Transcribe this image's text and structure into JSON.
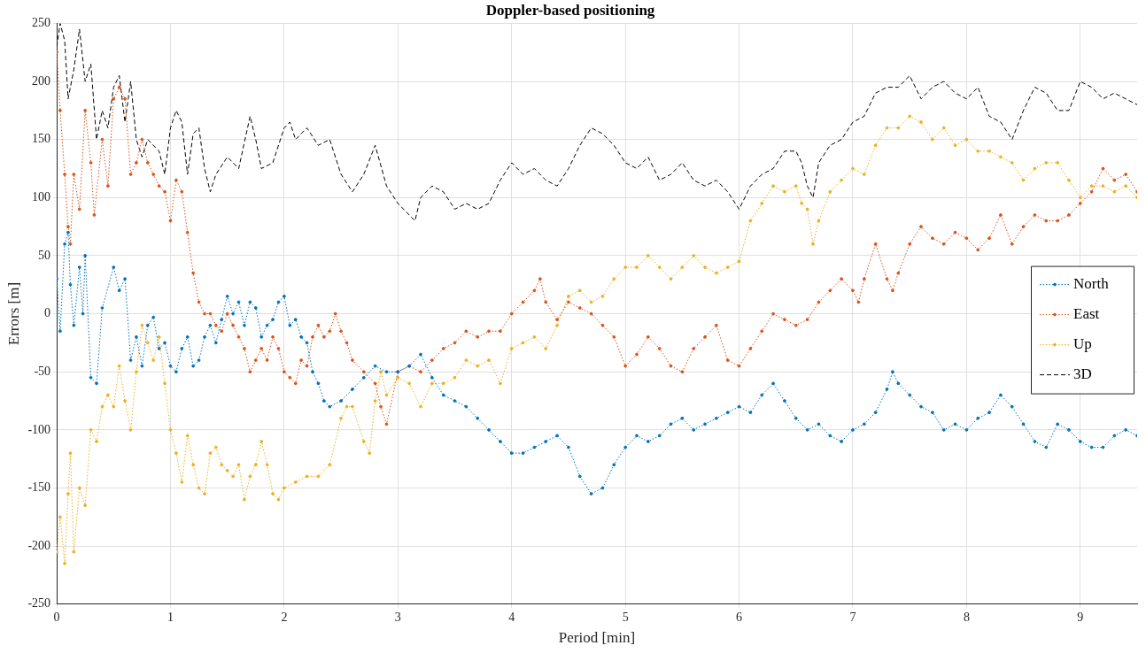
{
  "chart_data": {
    "type": "line",
    "title": "Doppler-based positioning",
    "xlabel": "Period [min]",
    "ylabel": "Errors [m]",
    "xlim": [
      0,
      9.5
    ],
    "xticks": [
      0,
      1,
      2,
      3,
      4,
      5,
      6,
      7,
      8,
      9
    ],
    "ylim": [
      -250,
      250
    ],
    "yticks": [
      -250,
      -200,
      -150,
      -100,
      -50,
      0,
      50,
      100,
      150,
      200,
      250
    ],
    "grid": true,
    "legend": "right",
    "series": [
      {
        "name": "North",
        "color": "#0072bd",
        "marker": "circle",
        "line_style": "dotted",
        "x": [
          0,
          0.03,
          0.07,
          0.1,
          0.12,
          0.15,
          0.2,
          0.23,
          0.25,
          0.3,
          0.35,
          0.4,
          0.5,
          0.55,
          0.6,
          0.65,
          0.7,
          0.75,
          0.8,
          0.85,
          0.9,
          0.95,
          1.0,
          1.05,
          1.1,
          1.15,
          1.2,
          1.25,
          1.3,
          1.35,
          1.4,
          1.45,
          1.5,
          1.55,
          1.6,
          1.65,
          1.7,
          1.75,
          1.8,
          1.85,
          1.9,
          1.95,
          2.0,
          2.05,
          2.1,
          2.15,
          2.2,
          2.25,
          2.3,
          2.35,
          2.4,
          2.5,
          2.6,
          2.7,
          2.8,
          2.9,
          3.0,
          3.1,
          3.2,
          3.3,
          3.4,
          3.5,
          3.6,
          3.7,
          3.8,
          3.9,
          4.0,
          4.1,
          4.2,
          4.3,
          4.4,
          4.5,
          4.6,
          4.7,
          4.8,
          4.9,
          5.0,
          5.1,
          5.2,
          5.3,
          5.4,
          5.5,
          5.6,
          5.7,
          5.8,
          5.9,
          6.0,
          6.1,
          6.2,
          6.3,
          6.4,
          6.5,
          6.6,
          6.7,
          6.8,
          6.9,
          7.0,
          7.1,
          7.2,
          7.3,
          7.35,
          7.4,
          7.5,
          7.6,
          7.7,
          7.8,
          7.9,
          8.0,
          8.1,
          8.2,
          8.3,
          8.4,
          8.5,
          8.6,
          8.7,
          8.8,
          8.9,
          9.0,
          9.1,
          9.2,
          9.3,
          9.4,
          9.5
        ],
        "values": [
          30,
          -15,
          60,
          70,
          25,
          -10,
          40,
          0,
          50,
          -55,
          -60,
          5,
          40,
          20,
          30,
          -40,
          -20,
          -45,
          -10,
          -3,
          -30,
          -25,
          -45,
          -50,
          -30,
          -20,
          -45,
          -40,
          -20,
          -10,
          -25,
          -5,
          15,
          0,
          10,
          -10,
          10,
          5,
          -20,
          -10,
          -5,
          10,
          15,
          -10,
          -5,
          -20,
          -25,
          -50,
          -60,
          -75,
          -80,
          -75,
          -65,
          -55,
          -45,
          -50,
          -50,
          -45,
          -35,
          -55,
          -70,
          -75,
          -80,
          -90,
          -100,
          -110,
          -120,
          -120,
          -115,
          -110,
          -105,
          -115,
          -140,
          -155,
          -150,
          -130,
          -115,
          -105,
          -110,
          -105,
          -95,
          -90,
          -100,
          -95,
          -90,
          -85,
          -80,
          -85,
          -70,
          -60,
          -75,
          -90,
          -100,
          -95,
          -105,
          -110,
          -100,
          -95,
          -85,
          -65,
          -50,
          -60,
          -70,
          -80,
          -85,
          -100,
          -95,
          -100,
          -90,
          -85,
          -70,
          -80,
          -95,
          -110,
          -115,
          -95,
          -100,
          -110,
          -115,
          -115,
          -105,
          -100,
          -105
        ]
      },
      {
        "name": "East",
        "color": "#d95319",
        "marker": "circle",
        "line_style": "dotted",
        "x": [
          0,
          0.03,
          0.07,
          0.1,
          0.12,
          0.15,
          0.2,
          0.25,
          0.3,
          0.33,
          0.4,
          0.45,
          0.5,
          0.55,
          0.6,
          0.65,
          0.7,
          0.75,
          0.8,
          0.85,
          0.9,
          0.95,
          1.0,
          1.05,
          1.1,
          1.15,
          1.2,
          1.25,
          1.3,
          1.35,
          1.4,
          1.45,
          1.5,
          1.55,
          1.6,
          1.65,
          1.7,
          1.75,
          1.8,
          1.85,
          1.9,
          1.95,
          2.0,
          2.05,
          2.1,
          2.15,
          2.2,
          2.25,
          2.3,
          2.35,
          2.4,
          2.45,
          2.5,
          2.55,
          2.6,
          2.7,
          2.8,
          2.85,
          2.9,
          3.0,
          3.1,
          3.2,
          3.3,
          3.4,
          3.5,
          3.6,
          3.7,
          3.8,
          3.9,
          4.0,
          4.1,
          4.2,
          4.25,
          4.3,
          4.4,
          4.5,
          4.6,
          4.7,
          4.8,
          4.9,
          5.0,
          5.1,
          5.2,
          5.3,
          5.4,
          5.5,
          5.6,
          5.7,
          5.8,
          5.9,
          6.0,
          6.1,
          6.2,
          6.3,
          6.4,
          6.5,
          6.6,
          6.7,
          6.8,
          6.9,
          7.0,
          7.05,
          7.1,
          7.2,
          7.3,
          7.35,
          7.4,
          7.5,
          7.6,
          7.7,
          7.8,
          7.9,
          8.0,
          8.1,
          8.2,
          8.3,
          8.4,
          8.5,
          8.6,
          8.7,
          8.8,
          8.9,
          9.0,
          9.1,
          9.2,
          9.3,
          9.4,
          9.5
        ],
        "values": [
          225,
          175,
          120,
          75,
          60,
          120,
          90,
          175,
          130,
          85,
          150,
          110,
          185,
          195,
          185,
          120,
          130,
          150,
          130,
          120,
          110,
          105,
          80,
          115,
          105,
          70,
          35,
          10,
          0,
          0,
          -10,
          -15,
          0,
          -10,
          -20,
          -30,
          -50,
          -40,
          -30,
          -40,
          -20,
          -30,
          -50,
          -55,
          -60,
          -40,
          -45,
          -20,
          -10,
          -20,
          -15,
          0,
          -15,
          -25,
          -40,
          -50,
          -60,
          -80,
          -95,
          -50,
          -45,
          -50,
          -40,
          -30,
          -25,
          -15,
          -20,
          -15,
          -15,
          0,
          10,
          20,
          30,
          10,
          -5,
          10,
          5,
          0,
          -10,
          -20,
          -45,
          -35,
          -20,
          -30,
          -45,
          -50,
          -30,
          -20,
          -10,
          -40,
          -45,
          -30,
          -15,
          0,
          -5,
          -10,
          -5,
          10,
          20,
          30,
          20,
          10,
          30,
          60,
          30,
          20,
          35,
          60,
          75,
          65,
          60,
          70,
          65,
          55,
          65,
          85,
          60,
          75,
          85,
          80,
          80,
          85,
          95,
          105,
          125,
          115,
          120,
          105
        ]
      },
      {
        "name": "Up",
        "color": "#edb120",
        "marker": "circle",
        "line_style": "dotted",
        "x": [
          0,
          0.03,
          0.07,
          0.1,
          0.12,
          0.15,
          0.2,
          0.25,
          0.3,
          0.35,
          0.4,
          0.45,
          0.5,
          0.55,
          0.6,
          0.65,
          0.7,
          0.75,
          0.8,
          0.85,
          0.9,
          0.95,
          1.0,
          1.05,
          1.1,
          1.15,
          1.2,
          1.25,
          1.3,
          1.35,
          1.4,
          1.45,
          1.5,
          1.55,
          1.6,
          1.65,
          1.7,
          1.75,
          1.8,
          1.85,
          1.9,
          1.95,
          2.0,
          2.1,
          2.2,
          2.3,
          2.4,
          2.5,
          2.55,
          2.6,
          2.7,
          2.75,
          2.8,
          2.85,
          2.9,
          3.0,
          3.1,
          3.2,
          3.3,
          3.4,
          3.5,
          3.6,
          3.7,
          3.8,
          3.9,
          4.0,
          4.1,
          4.2,
          4.3,
          4.4,
          4.5,
          4.6,
          4.7,
          4.8,
          4.9,
          5.0,
          5.1,
          5.2,
          5.3,
          5.4,
          5.5,
          5.6,
          5.7,
          5.8,
          5.9,
          6.0,
          6.1,
          6.2,
          6.3,
          6.4,
          6.5,
          6.55,
          6.6,
          6.65,
          6.7,
          6.8,
          6.9,
          7.0,
          7.1,
          7.2,
          7.3,
          7.4,
          7.5,
          7.6,
          7.7,
          7.8,
          7.9,
          8.0,
          8.1,
          8.2,
          8.3,
          8.4,
          8.5,
          8.6,
          8.7,
          8.8,
          8.9,
          9.0,
          9.1,
          9.2,
          9.3,
          9.4,
          9.5
        ],
        "values": [
          -205,
          -175,
          -215,
          -155,
          -120,
          -205,
          -150,
          -165,
          -100,
          -110,
          -80,
          -70,
          -80,
          -45,
          -75,
          -100,
          -50,
          -10,
          -25,
          -40,
          -20,
          -60,
          -100,
          -120,
          -145,
          -105,
          -130,
          -150,
          -155,
          -120,
          -115,
          -130,
          -135,
          -140,
          -130,
          -160,
          -140,
          -130,
          -110,
          -130,
          -155,
          -160,
          -150,
          -145,
          -140,
          -140,
          -130,
          -90,
          -80,
          -80,
          -110,
          -120,
          -75,
          -50,
          -70,
          -55,
          -60,
          -80,
          -60,
          -60,
          -55,
          -40,
          -45,
          -40,
          -60,
          -30,
          -25,
          -20,
          -30,
          -10,
          15,
          20,
          10,
          15,
          30,
          40,
          40,
          50,
          40,
          30,
          40,
          50,
          40,
          35,
          40,
          45,
          80,
          95,
          110,
          105,
          110,
          95,
          90,
          60,
          80,
          105,
          115,
          125,
          120,
          145,
          160,
          160,
          170,
          165,
          150,
          160,
          145,
          150,
          140,
          140,
          135,
          130,
          115,
          125,
          130,
          130,
          115,
          100,
          110,
          110,
          105,
          110,
          100
        ]
      },
      {
        "name": "3D",
        "color": "#000000",
        "marker": "none",
        "line_style": "dashed",
        "x": [
          0,
          0.03,
          0.07,
          0.1,
          0.15,
          0.2,
          0.25,
          0.3,
          0.35,
          0.4,
          0.45,
          0.5,
          0.55,
          0.6,
          0.65,
          0.7,
          0.75,
          0.8,
          0.9,
          0.95,
          1.0,
          1.05,
          1.1,
          1.15,
          1.2,
          1.25,
          1.3,
          1.35,
          1.4,
          1.5,
          1.6,
          1.7,
          1.75,
          1.8,
          1.9,
          2.0,
          2.05,
          2.1,
          2.2,
          2.3,
          2.4,
          2.5,
          2.6,
          2.7,
          2.8,
          2.9,
          3.0,
          3.1,
          3.15,
          3.2,
          3.3,
          3.4,
          3.5,
          3.6,
          3.7,
          3.8,
          3.9,
          4.0,
          4.1,
          4.2,
          4.3,
          4.4,
          4.5,
          4.6,
          4.7,
          4.8,
          4.9,
          5.0,
          5.1,
          5.2,
          5.3,
          5.4,
          5.5,
          5.6,
          5.7,
          5.8,
          5.9,
          6.0,
          6.1,
          6.2,
          6.3,
          6.4,
          6.5,
          6.55,
          6.6,
          6.65,
          6.7,
          6.8,
          6.9,
          7.0,
          7.1,
          7.2,
          7.3,
          7.4,
          7.5,
          7.6,
          7.7,
          7.8,
          7.9,
          8.0,
          8.1,
          8.2,
          8.3,
          8.4,
          8.5,
          8.6,
          8.7,
          8.8,
          8.9,
          9.0,
          9.1,
          9.2,
          9.3,
          9.4,
          9.5
        ],
        "values": [
          230,
          250,
          235,
          185,
          210,
          245,
          200,
          215,
          150,
          175,
          160,
          195,
          205,
          165,
          200,
          150,
          135,
          150,
          140,
          120,
          160,
          175,
          165,
          120,
          155,
          160,
          125,
          105,
          120,
          135,
          125,
          170,
          150,
          125,
          130,
          160,
          165,
          150,
          160,
          145,
          150,
          120,
          105,
          120,
          145,
          110,
          95,
          85,
          80,
          100,
          110,
          105,
          90,
          95,
          90,
          95,
          115,
          130,
          120,
          125,
          115,
          110,
          125,
          145,
          160,
          155,
          145,
          130,
          125,
          135,
          115,
          120,
          130,
          115,
          110,
          115,
          105,
          90,
          110,
          120,
          125,
          140,
          140,
          130,
          110,
          100,
          130,
          145,
          150,
          165,
          170,
          190,
          195,
          195,
          205,
          185,
          195,
          200,
          190,
          185,
          195,
          170,
          165,
          150,
          175,
          195,
          190,
          175,
          175,
          200,
          195,
          185,
          190,
          185,
          180
        ]
      }
    ]
  }
}
